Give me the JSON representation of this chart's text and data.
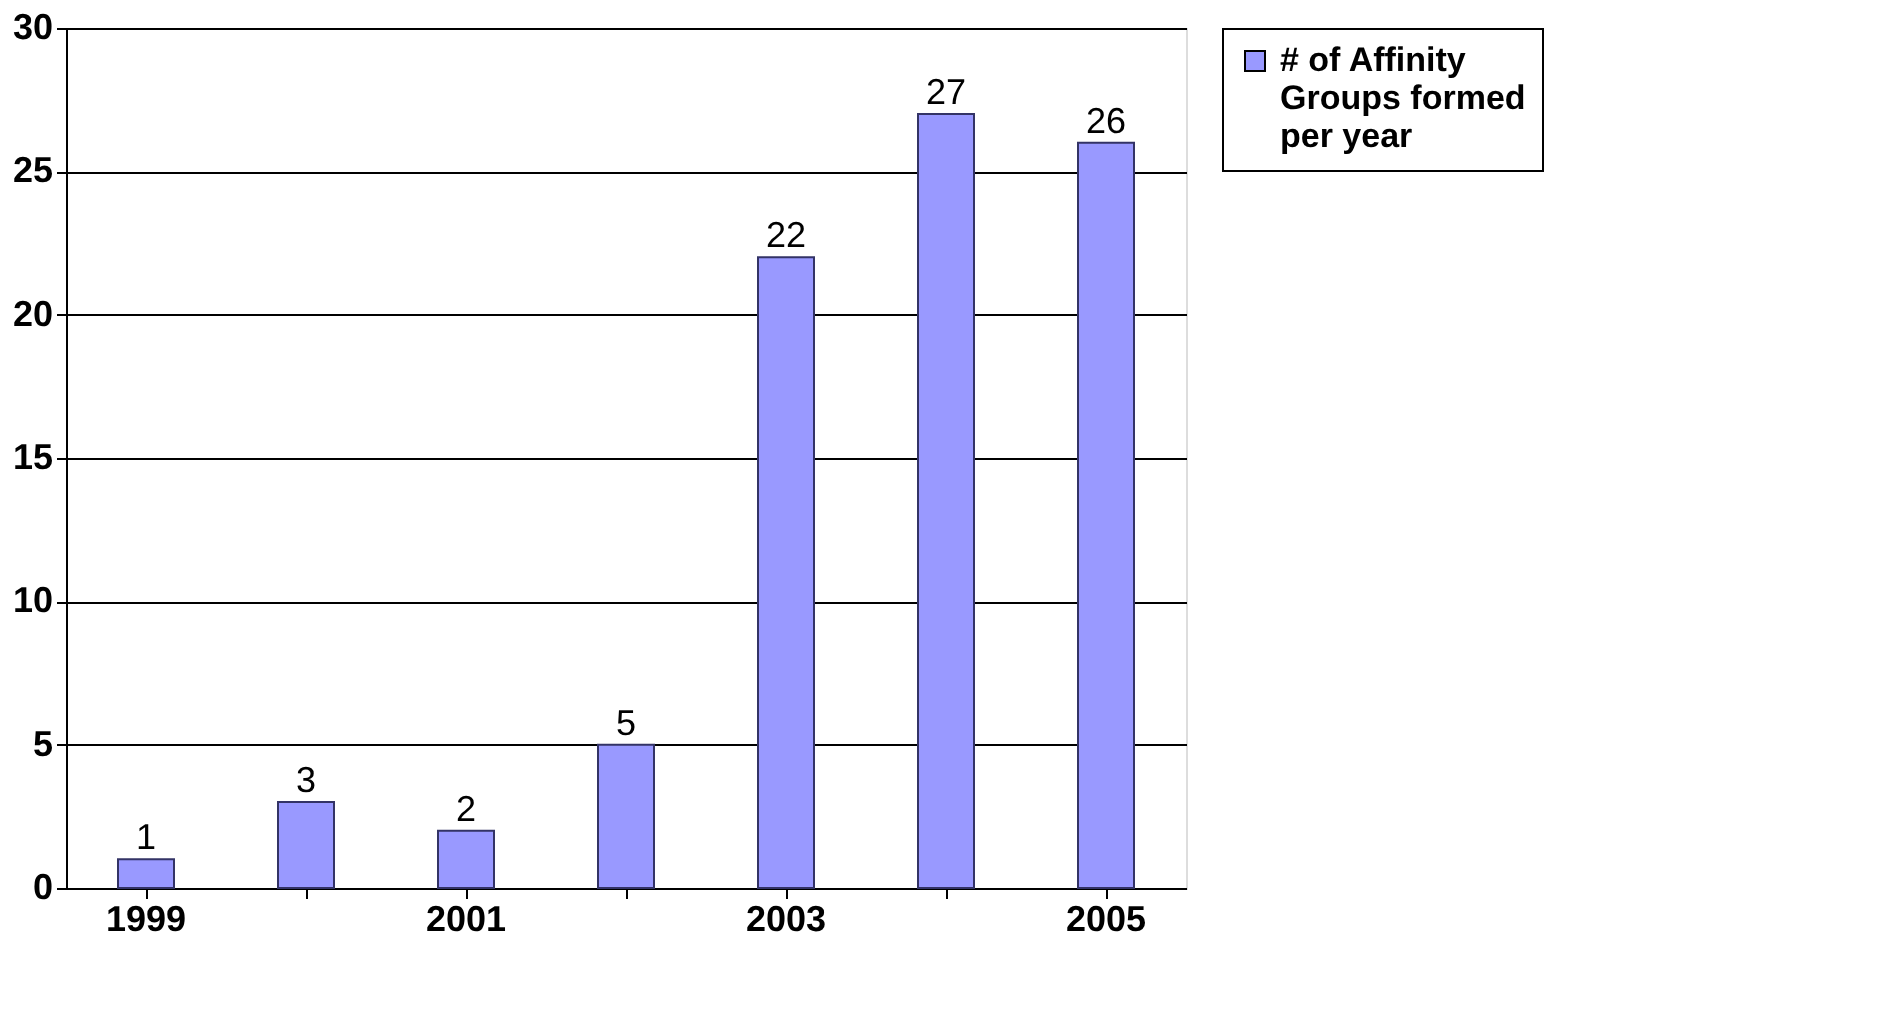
{
  "chart_data": {
    "type": "bar",
    "categories": [
      "1999",
      null,
      "2001",
      null,
      "2003",
      null,
      "2005"
    ],
    "series": [
      {
        "name": "# of Affinity Groups formed per year",
        "color": "#9999ff",
        "values": [
          1,
          3,
          2,
          5,
          22,
          27,
          26
        ]
      }
    ],
    "ylim": [
      0,
      30
    ],
    "yticks": [
      0,
      5,
      10,
      15,
      20,
      25,
      30
    ],
    "grid": "y",
    "legend": "right",
    "data_labels": true
  }
}
